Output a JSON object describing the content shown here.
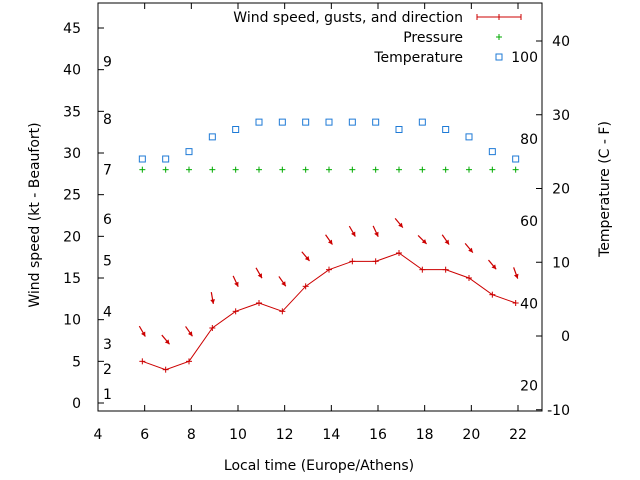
{
  "chart_data": {
    "type": "line",
    "xlabel": "Local time (Europe/Athens)",
    "ylabel": "Wind speed (kt - Beaufort)",
    "y2label": "Temperature (C - F)",
    "xlim": [
      4,
      23
    ],
    "ylim": [
      -1,
      48
    ],
    "y2lim": [
      -10,
      45
    ],
    "x_ticks": [
      "4",
      "6",
      "8",
      "10",
      "12",
      "14",
      "16",
      "18",
      "20",
      "22"
    ],
    "y_ticks": [
      "0",
      "5",
      "10",
      "15",
      "20",
      "25",
      "30",
      "35",
      "40",
      "45"
    ],
    "y2_ticks": [
      "-10",
      "0",
      "10",
      "20",
      "30",
      "40"
    ],
    "beaufort_labels": [
      {
        "label": "1",
        "kt": 1.1
      },
      {
        "label": "2",
        "kt": 4.1
      },
      {
        "label": "3",
        "kt": 7.1
      },
      {
        "label": "4",
        "kt": 11.0
      },
      {
        "label": "5",
        "kt": 17.1
      },
      {
        "label": "6",
        "kt": 22.1
      },
      {
        "label": "7",
        "kt": 28.0
      },
      {
        "label": "8",
        "kt": 34.1
      },
      {
        "label": "9",
        "kt": 41.0
      }
    ],
    "fahrenheit_labels": [
      {
        "label": "20",
        "c": -6.7
      },
      {
        "label": "40",
        "c": 4.4
      },
      {
        "label": "60",
        "c": 15.6
      },
      {
        "label": "80",
        "c": 26.7
      },
      {
        "label": "100",
        "c": 37.8
      }
    ],
    "x": [
      5.9,
      6.9,
      7.9,
      8.9,
      9.9,
      10.9,
      11.9,
      12.9,
      13.9,
      14.9,
      15.9,
      16.9,
      17.9,
      18.9,
      19.9,
      20.9,
      21.9
    ],
    "series": [
      {
        "name": "Wind speed, gusts, and direction",
        "color": "#cc0000",
        "values": [
          5,
          4,
          5,
          9,
          11,
          12,
          11,
          14,
          16,
          17,
          17,
          18,
          16,
          16,
          15,
          13,
          12
        ],
        "direction_deg": [
          330,
          320,
          325,
          350,
          335,
          330,
          325,
          320,
          325,
          330,
          335,
          320,
          315,
          325,
          320,
          320,
          340
        ]
      },
      {
        "name": "Pressure",
        "color": "#00aa00",
        "values": [
          28,
          28,
          28,
          28,
          28,
          28,
          28,
          28,
          28,
          28,
          28,
          28,
          28,
          28,
          28,
          28,
          28
        ]
      },
      {
        "name": "Temperature",
        "color": "#1e7ad6",
        "axis": "y2",
        "values": [
          24,
          24,
          25,
          27,
          28,
          29,
          29,
          29,
          29,
          29,
          29,
          28,
          29,
          28,
          27,
          25,
          24
        ]
      }
    ],
    "legend_position": "top-right"
  }
}
